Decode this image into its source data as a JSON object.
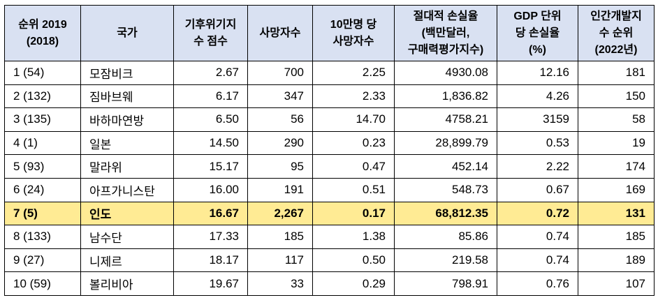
{
  "table": {
    "description_name": "climate-risk-index-ranking-table",
    "colors": {
      "header_bg": "#d9e1f2",
      "highlight_bg": "#ffeb94",
      "border": "#000000",
      "text": "#000000",
      "row_bg": "#ffffff"
    },
    "headers": [
      {
        "key": "rank",
        "label": "순위 2019 (2018)",
        "lines": [
          "순위 2019",
          "(2018)"
        ]
      },
      {
        "key": "country",
        "label": "국가",
        "lines": [
          "국가"
        ]
      },
      {
        "key": "cri-score",
        "label": "기후위기지수 점수",
        "lines": [
          "기후위기지",
          "수 점수"
        ]
      },
      {
        "key": "deaths",
        "label": "사망자수",
        "lines": [
          "사망자수"
        ]
      },
      {
        "key": "deaths-per-100k",
        "label": "10만명 당 사망자수",
        "lines": [
          "10만명 당",
          "사망자수"
        ]
      },
      {
        "key": "absolute-loss",
        "label": "절대적 손실율 (백만달러, 구매력평가지수)",
        "lines": [
          "절대적 손실율",
          "(백만달러,",
          "구매력평가지수)"
        ]
      },
      {
        "key": "loss-per-gdp",
        "label": "GDP 단위 당 손실율 (%)",
        "lines": [
          "GDP 단위",
          "당 손실율",
          "(%)"
        ]
      },
      {
        "key": "hdi-rank",
        "label": "인간개발지수 순위 (2022년)",
        "lines": [
          "인간개발지",
          "수 순위",
          "(2022년)"
        ]
      }
    ],
    "column_align": [
      "left",
      "left",
      "right",
      "right",
      "right",
      "right",
      "right",
      "right"
    ],
    "rows": [
      {
        "highlighted": false,
        "cells": [
          "1 (54)",
          "모잠비크",
          "2.67",
          "700",
          "2.25",
          "4930.08",
          "12.16",
          "181"
        ]
      },
      {
        "highlighted": false,
        "cells": [
          "2 (132)",
          "짐바브웨",
          "6.17",
          "347",
          "2.33",
          "1,836.82",
          "4.26",
          "150"
        ]
      },
      {
        "highlighted": false,
        "cells": [
          "3 (135)",
          "바하마연방",
          "6.50",
          "56",
          "14.70",
          "4758.21",
          "3159",
          "58"
        ]
      },
      {
        "highlighted": false,
        "cells": [
          "4 (1)",
          "일본",
          "14.50",
          "290",
          "0.23",
          "28,899.79",
          "0.53",
          "19"
        ]
      },
      {
        "highlighted": false,
        "cells": [
          "5 (93)",
          "말라위",
          "15.17",
          "95",
          "0.47",
          "452.14",
          "2.22",
          "174"
        ]
      },
      {
        "highlighted": false,
        "cells": [
          "6 (24)",
          "아프가니스탄",
          "16.00",
          "191",
          "0.51",
          "548.73",
          "0.67",
          "169"
        ]
      },
      {
        "highlighted": true,
        "cells": [
          "7 (5)",
          "인도",
          "16.67",
          "2,267",
          "0.17",
          "68,812.35",
          "0.72",
          "131"
        ]
      },
      {
        "highlighted": false,
        "cells": [
          "8 (133)",
          "남수단",
          "17.33",
          "185",
          "1.38",
          "85.86",
          "0.74",
          "185"
        ]
      },
      {
        "highlighted": false,
        "cells": [
          "9 (27)",
          "니제르",
          "18.17",
          "117",
          "0.50",
          "219.58",
          "0.74",
          "189"
        ]
      },
      {
        "highlighted": false,
        "cells": [
          "10 (59)",
          "볼리비아",
          "19.67",
          "33",
          "0.29",
          "798.91",
          "0.76",
          "107"
        ]
      }
    ]
  }
}
